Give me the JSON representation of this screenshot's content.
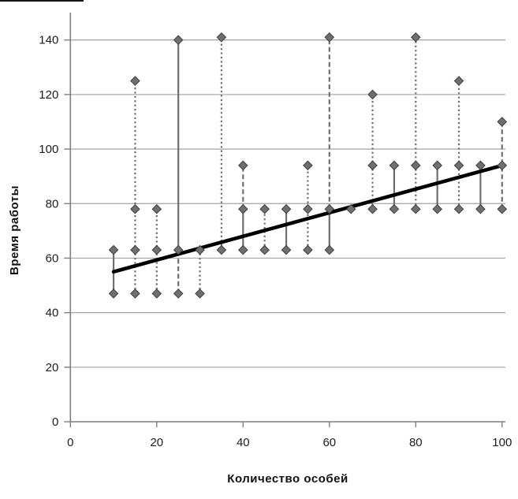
{
  "chart_data": {
    "type": "scatter",
    "title": "",
    "xlabel": "Количество особей",
    "ylabel": "Время работы",
    "xlim": [
      0,
      100
    ],
    "ylim": [
      0,
      150
    ],
    "x_ticks": [
      0,
      20,
      40,
      60,
      80,
      100
    ],
    "y_ticks": [
      0,
      20,
      40,
      60,
      80,
      100,
      120,
      140
    ],
    "grid": "horizontal",
    "legend_position": "none",
    "marker_shape": "diamond",
    "points": [
      {
        "x": 10,
        "y": 47
      },
      {
        "x": 10,
        "y": 63
      },
      {
        "x": 15,
        "y": 47
      },
      {
        "x": 15,
        "y": 63
      },
      {
        "x": 15,
        "y": 78
      },
      {
        "x": 15,
        "y": 125
      },
      {
        "x": 20,
        "y": 47
      },
      {
        "x": 20,
        "y": 63
      },
      {
        "x": 20,
        "y": 78
      },
      {
        "x": 25,
        "y": 47
      },
      {
        "x": 25,
        "y": 63
      },
      {
        "x": 25,
        "y": 140
      },
      {
        "x": 30,
        "y": 47
      },
      {
        "x": 30,
        "y": 63
      },
      {
        "x": 35,
        "y": 63
      },
      {
        "x": 35,
        "y": 141
      },
      {
        "x": 40,
        "y": 63
      },
      {
        "x": 40,
        "y": 78
      },
      {
        "x": 40,
        "y": 94
      },
      {
        "x": 45,
        "y": 63
      },
      {
        "x": 45,
        "y": 78
      },
      {
        "x": 50,
        "y": 63
      },
      {
        "x": 50,
        "y": 78
      },
      {
        "x": 55,
        "y": 63
      },
      {
        "x": 55,
        "y": 78
      },
      {
        "x": 55,
        "y": 94
      },
      {
        "x": 60,
        "y": 63
      },
      {
        "x": 60,
        "y": 78
      },
      {
        "x": 60,
        "y": 141
      },
      {
        "x": 65,
        "y": 78
      },
      {
        "x": 70,
        "y": 78
      },
      {
        "x": 70,
        "y": 94
      },
      {
        "x": 70,
        "y": 120
      },
      {
        "x": 75,
        "y": 78
      },
      {
        "x": 75,
        "y": 94
      },
      {
        "x": 80,
        "y": 78
      },
      {
        "x": 80,
        "y": 94
      },
      {
        "x": 80,
        "y": 141
      },
      {
        "x": 85,
        "y": 78
      },
      {
        "x": 85,
        "y": 94
      },
      {
        "x": 90,
        "y": 78
      },
      {
        "x": 90,
        "y": 94
      },
      {
        "x": 90,
        "y": 125
      },
      {
        "x": 95,
        "y": 78
      },
      {
        "x": 95,
        "y": 94
      },
      {
        "x": 100,
        "y": 78
      },
      {
        "x": 100,
        "y": 94
      },
      {
        "x": 100,
        "y": 110
      }
    ],
    "range_lines": [
      {
        "x": 10,
        "y1": 47,
        "y2": 63,
        "style": "solid"
      },
      {
        "x": 15,
        "y1": 47,
        "y2": 125,
        "style": "dotted"
      },
      {
        "x": 20,
        "y1": 47,
        "y2": 78,
        "style": "dotted"
      },
      {
        "x": 25,
        "y1": 47,
        "y2": 63,
        "style": "dashed"
      },
      {
        "x": 25,
        "y1": 63,
        "y2": 140,
        "style": "solid"
      },
      {
        "x": 30,
        "y1": 47,
        "y2": 63,
        "style": "dotted"
      },
      {
        "x": 35,
        "y1": 63,
        "y2": 141,
        "style": "dotted"
      },
      {
        "x": 40,
        "y1": 63,
        "y2": 78,
        "style": "solid"
      },
      {
        "x": 40,
        "y1": 78,
        "y2": 94,
        "style": "dashed"
      },
      {
        "x": 45,
        "y1": 63,
        "y2": 78,
        "style": "dotted"
      },
      {
        "x": 50,
        "y1": 63,
        "y2": 78,
        "style": "solid"
      },
      {
        "x": 55,
        "y1": 63,
        "y2": 94,
        "style": "dotted"
      },
      {
        "x": 60,
        "y1": 63,
        "y2": 78,
        "style": "solid"
      },
      {
        "x": 60,
        "y1": 78,
        "y2": 141,
        "style": "dashed"
      },
      {
        "x": 70,
        "y1": 78,
        "y2": 120,
        "style": "dotted"
      },
      {
        "x": 75,
        "y1": 78,
        "y2": 94,
        "style": "solid"
      },
      {
        "x": 80,
        "y1": 78,
        "y2": 141,
        "style": "dotted"
      },
      {
        "x": 85,
        "y1": 78,
        "y2": 94,
        "style": "solid"
      },
      {
        "x": 90,
        "y1": 78,
        "y2": 125,
        "style": "dotted"
      },
      {
        "x": 95,
        "y1": 78,
        "y2": 94,
        "style": "solid"
      },
      {
        "x": 100,
        "y1": 78,
        "y2": 110,
        "style": "dashed"
      }
    ],
    "trend_line": {
      "x1": 10,
      "y1": 55,
      "x2": 100,
      "y2": 94
    },
    "colors": {
      "marker_fill": "#6f6f6f",
      "marker_edge": "#3f3f3f",
      "range_line": "#6f6f6f",
      "trend": "#000000",
      "grid": "#a3a3a3",
      "axis": "#7f7f7f",
      "text": "#1c1c1c",
      "background": "#ffffff"
    }
  }
}
